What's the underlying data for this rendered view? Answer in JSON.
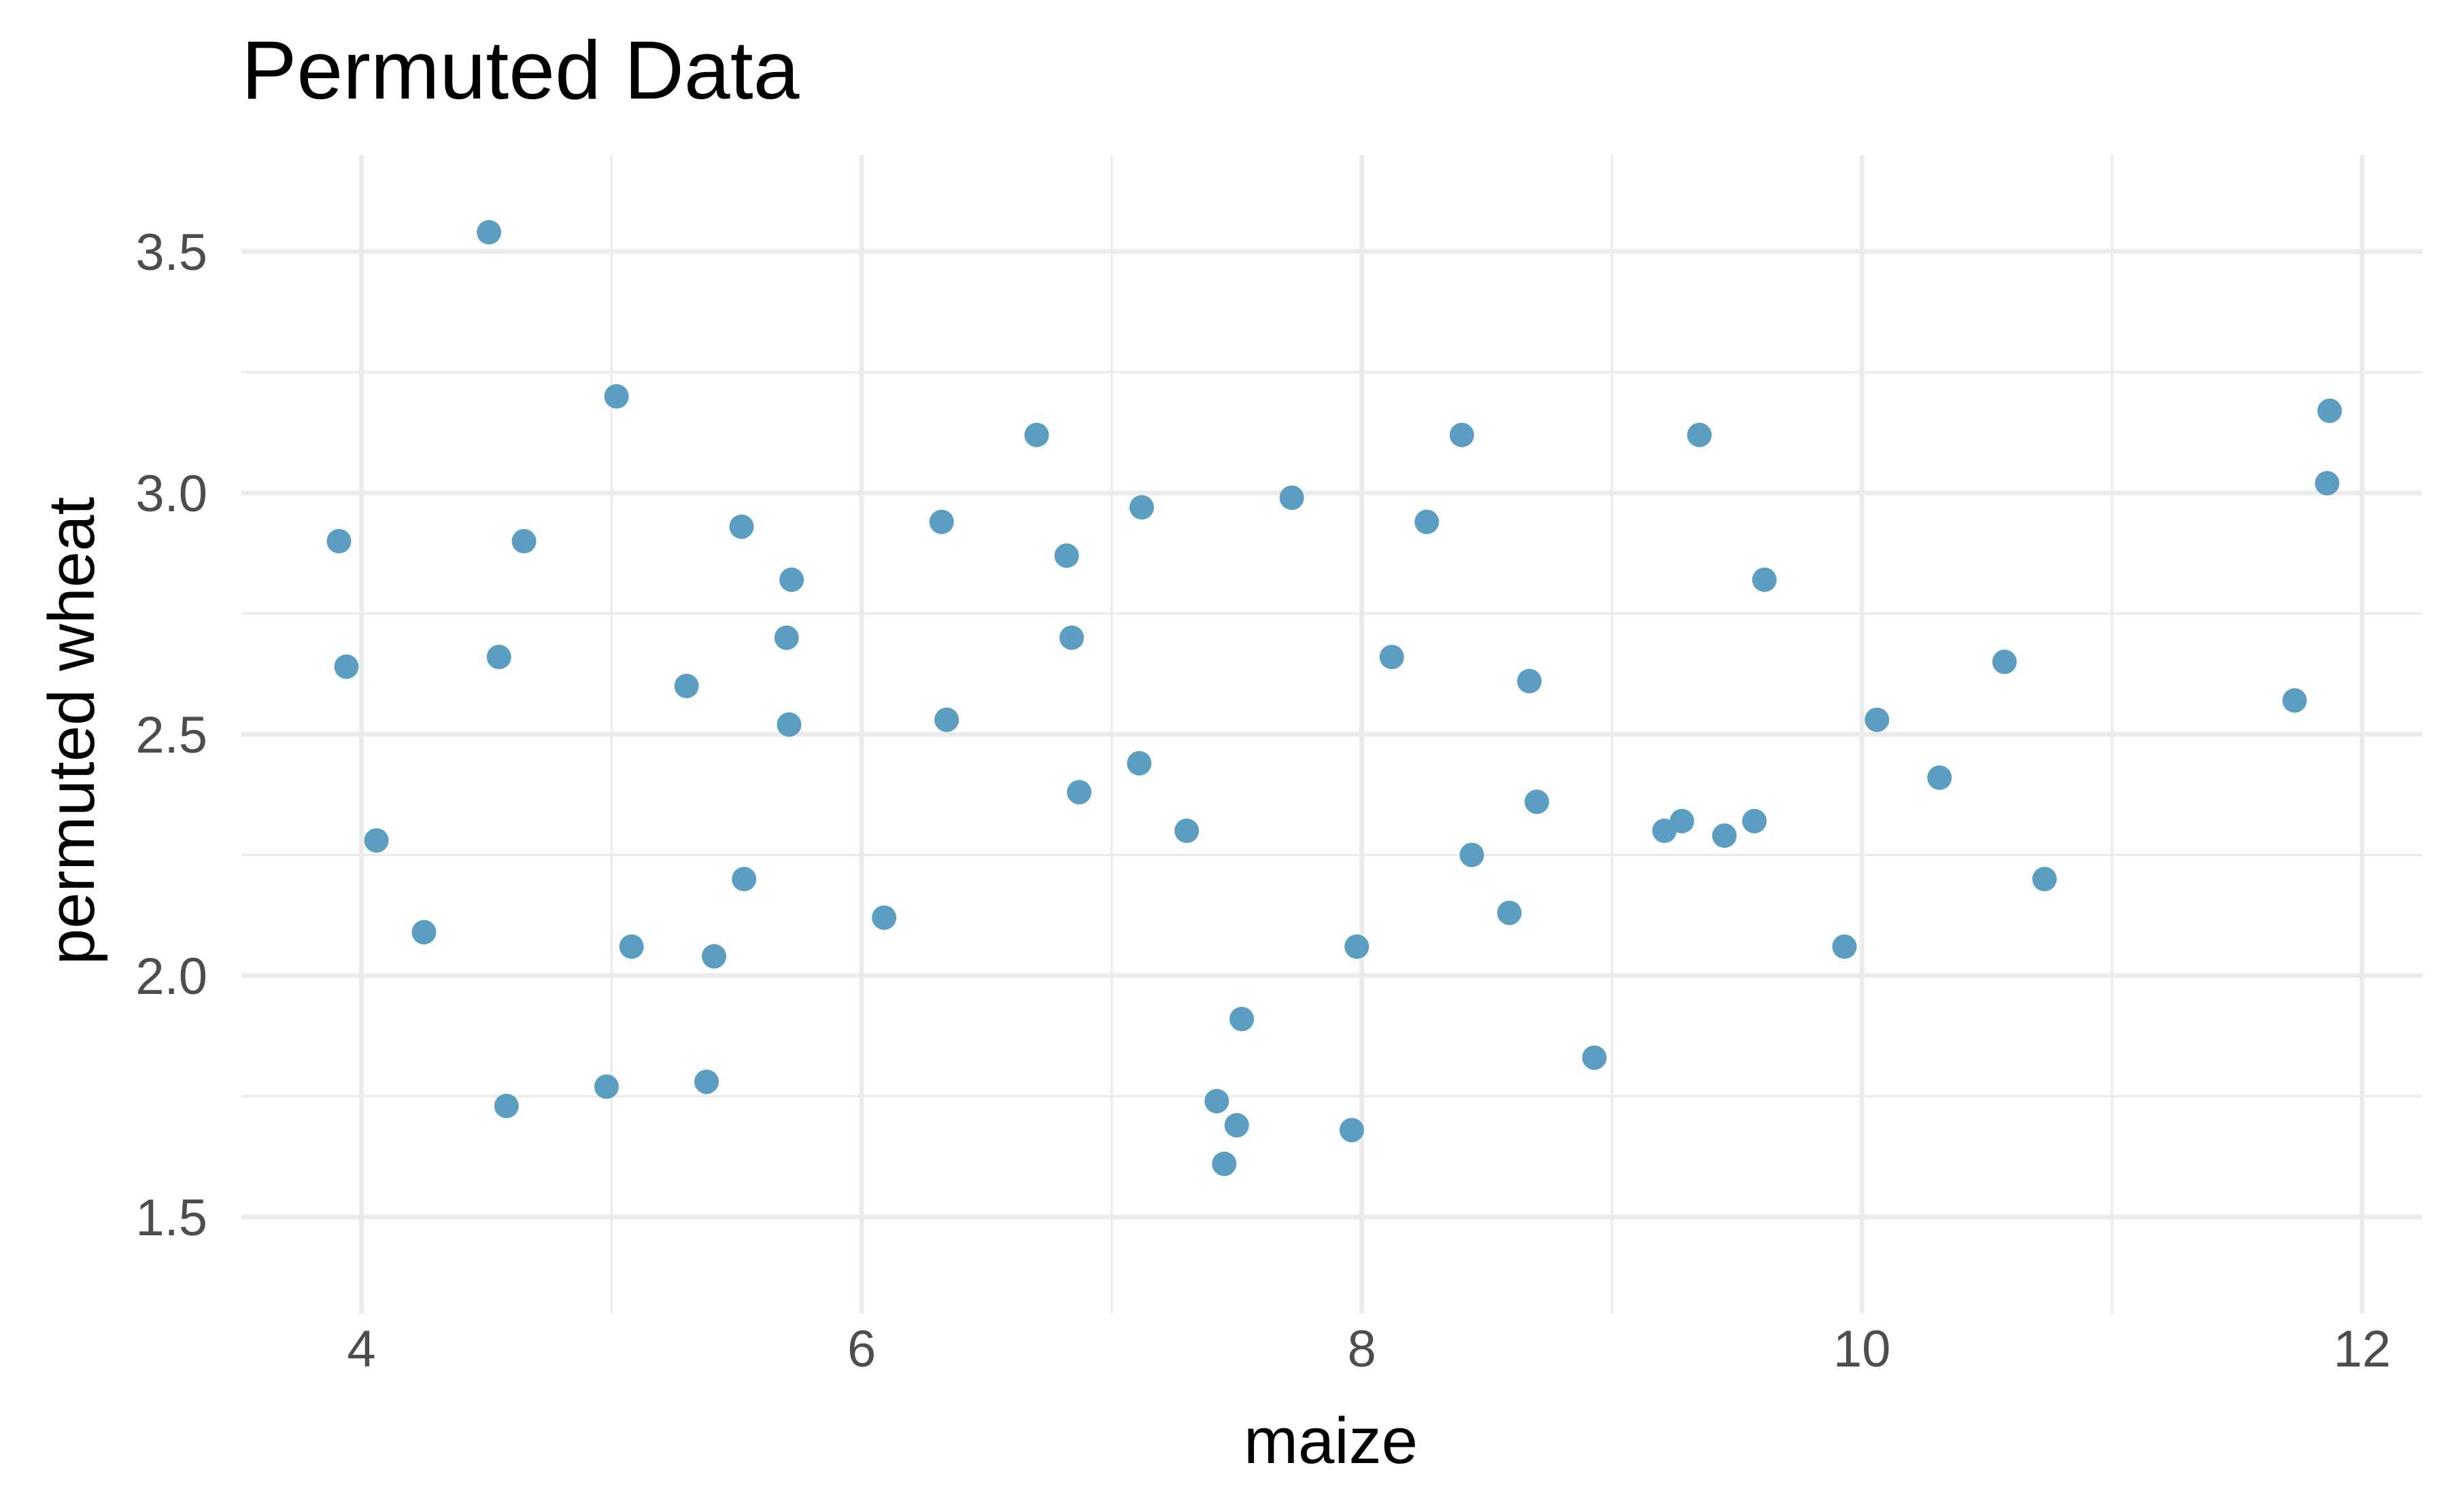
{
  "chart_data": {
    "type": "scatter",
    "title": "Permuted Data",
    "xlabel": "maize",
    "ylabel": "permuted wheat",
    "xlim": [
      3.52,
      12.24
    ],
    "ylim": [
      1.3,
      3.7
    ],
    "x_ticks": [
      4,
      6,
      8,
      10,
      12
    ],
    "y_ticks": [
      1.5,
      2.0,
      2.5,
      3.0,
      3.5
    ],
    "x_tick_labels": [
      "4",
      "6",
      "8",
      "10",
      "12"
    ],
    "y_tick_labels": [
      "1.5",
      "2.0",
      "2.5",
      "3.0",
      "3.5"
    ],
    "grid": true,
    "point_color": "#5b9ec2",
    "points": [
      {
        "x": 3.91,
        "y": 2.9
      },
      {
        "x": 3.94,
        "y": 2.64
      },
      {
        "x": 4.06,
        "y": 2.28
      },
      {
        "x": 4.25,
        "y": 2.09
      },
      {
        "x": 4.51,
        "y": 3.54
      },
      {
        "x": 4.55,
        "y": 2.66
      },
      {
        "x": 4.58,
        "y": 1.73
      },
      {
        "x": 4.65,
        "y": 2.9
      },
      {
        "x": 4.98,
        "y": 1.77
      },
      {
        "x": 5.02,
        "y": 3.2
      },
      {
        "x": 5.08,
        "y": 2.06
      },
      {
        "x": 5.3,
        "y": 2.6
      },
      {
        "x": 5.38,
        "y": 1.78
      },
      {
        "x": 5.41,
        "y": 2.04
      },
      {
        "x": 5.52,
        "y": 2.93
      },
      {
        "x": 5.53,
        "y": 2.2
      },
      {
        "x": 5.7,
        "y": 2.7
      },
      {
        "x": 5.71,
        "y": 2.52
      },
      {
        "x": 5.72,
        "y": 2.82
      },
      {
        "x": 6.09,
        "y": 2.12
      },
      {
        "x": 6.32,
        "y": 2.94
      },
      {
        "x": 6.34,
        "y": 2.53
      },
      {
        "x": 6.7,
        "y": 3.12
      },
      {
        "x": 6.82,
        "y": 2.87
      },
      {
        "x": 6.84,
        "y": 2.7
      },
      {
        "x": 6.87,
        "y": 2.38
      },
      {
        "x": 7.11,
        "y": 2.44
      },
      {
        "x": 7.12,
        "y": 2.97
      },
      {
        "x": 7.3,
        "y": 2.3
      },
      {
        "x": 7.42,
        "y": 1.74
      },
      {
        "x": 7.45,
        "y": 1.61
      },
      {
        "x": 7.5,
        "y": 1.69
      },
      {
        "x": 7.52,
        "y": 1.91
      },
      {
        "x": 7.72,
        "y": 2.99
      },
      {
        "x": 7.96,
        "y": 1.68
      },
      {
        "x": 7.98,
        "y": 2.06
      },
      {
        "x": 8.12,
        "y": 2.66
      },
      {
        "x": 8.26,
        "y": 2.94
      },
      {
        "x": 8.4,
        "y": 3.12
      },
      {
        "x": 8.44,
        "y": 2.25
      },
      {
        "x": 8.59,
        "y": 2.13
      },
      {
        "x": 8.67,
        "y": 2.61
      },
      {
        "x": 8.7,
        "y": 2.36
      },
      {
        "x": 8.93,
        "y": 1.83
      },
      {
        "x": 9.21,
        "y": 2.3
      },
      {
        "x": 9.28,
        "y": 2.32
      },
      {
        "x": 9.35,
        "y": 3.12
      },
      {
        "x": 9.45,
        "y": 2.29
      },
      {
        "x": 9.57,
        "y": 2.32
      },
      {
        "x": 9.61,
        "y": 2.82
      },
      {
        "x": 9.93,
        "y": 2.06
      },
      {
        "x": 10.06,
        "y": 2.53
      },
      {
        "x": 10.31,
        "y": 2.41
      },
      {
        "x": 10.57,
        "y": 2.65
      },
      {
        "x": 10.73,
        "y": 2.2
      },
      {
        "x": 11.73,
        "y": 2.57
      },
      {
        "x": 11.86,
        "y": 3.02
      },
      {
        "x": 11.87,
        "y": 3.17
      }
    ]
  }
}
